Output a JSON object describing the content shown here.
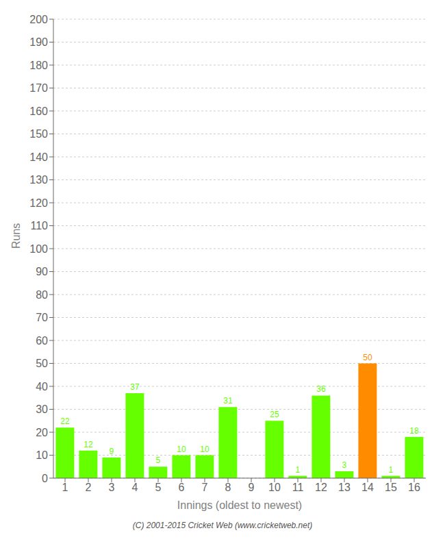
{
  "chart_data": {
    "type": "bar",
    "xlabel": "Innings (oldest to newest)",
    "ylabel": "Runs",
    "categories": [
      1,
      2,
      3,
      4,
      5,
      6,
      7,
      8,
      9,
      10,
      11,
      12,
      13,
      14,
      15,
      16
    ],
    "values": [
      22,
      12,
      9,
      37,
      5,
      10,
      10,
      31,
      0,
      25,
      1,
      36,
      3,
      50,
      1,
      18
    ],
    "colors": [
      "#66ff00",
      "#66ff00",
      "#66ff00",
      "#66ff00",
      "#66ff00",
      "#66ff00",
      "#66ff00",
      "#66ff00",
      "#66ff00",
      "#66ff00",
      "#66ff00",
      "#66ff00",
      "#66ff00",
      "#ff8c00",
      "#66ff00",
      "#66ff00"
    ],
    "ylim": [
      0,
      200
    ],
    "yticks": [
      0,
      10,
      20,
      30,
      40,
      50,
      60,
      70,
      80,
      90,
      100,
      110,
      120,
      130,
      140,
      150,
      160,
      170,
      180,
      190,
      200
    ],
    "grid": true,
    "data_labels": true,
    "annotations": [
      "(C) 2001-2015 Cricket Web (www.cricketweb.net)"
    ]
  }
}
